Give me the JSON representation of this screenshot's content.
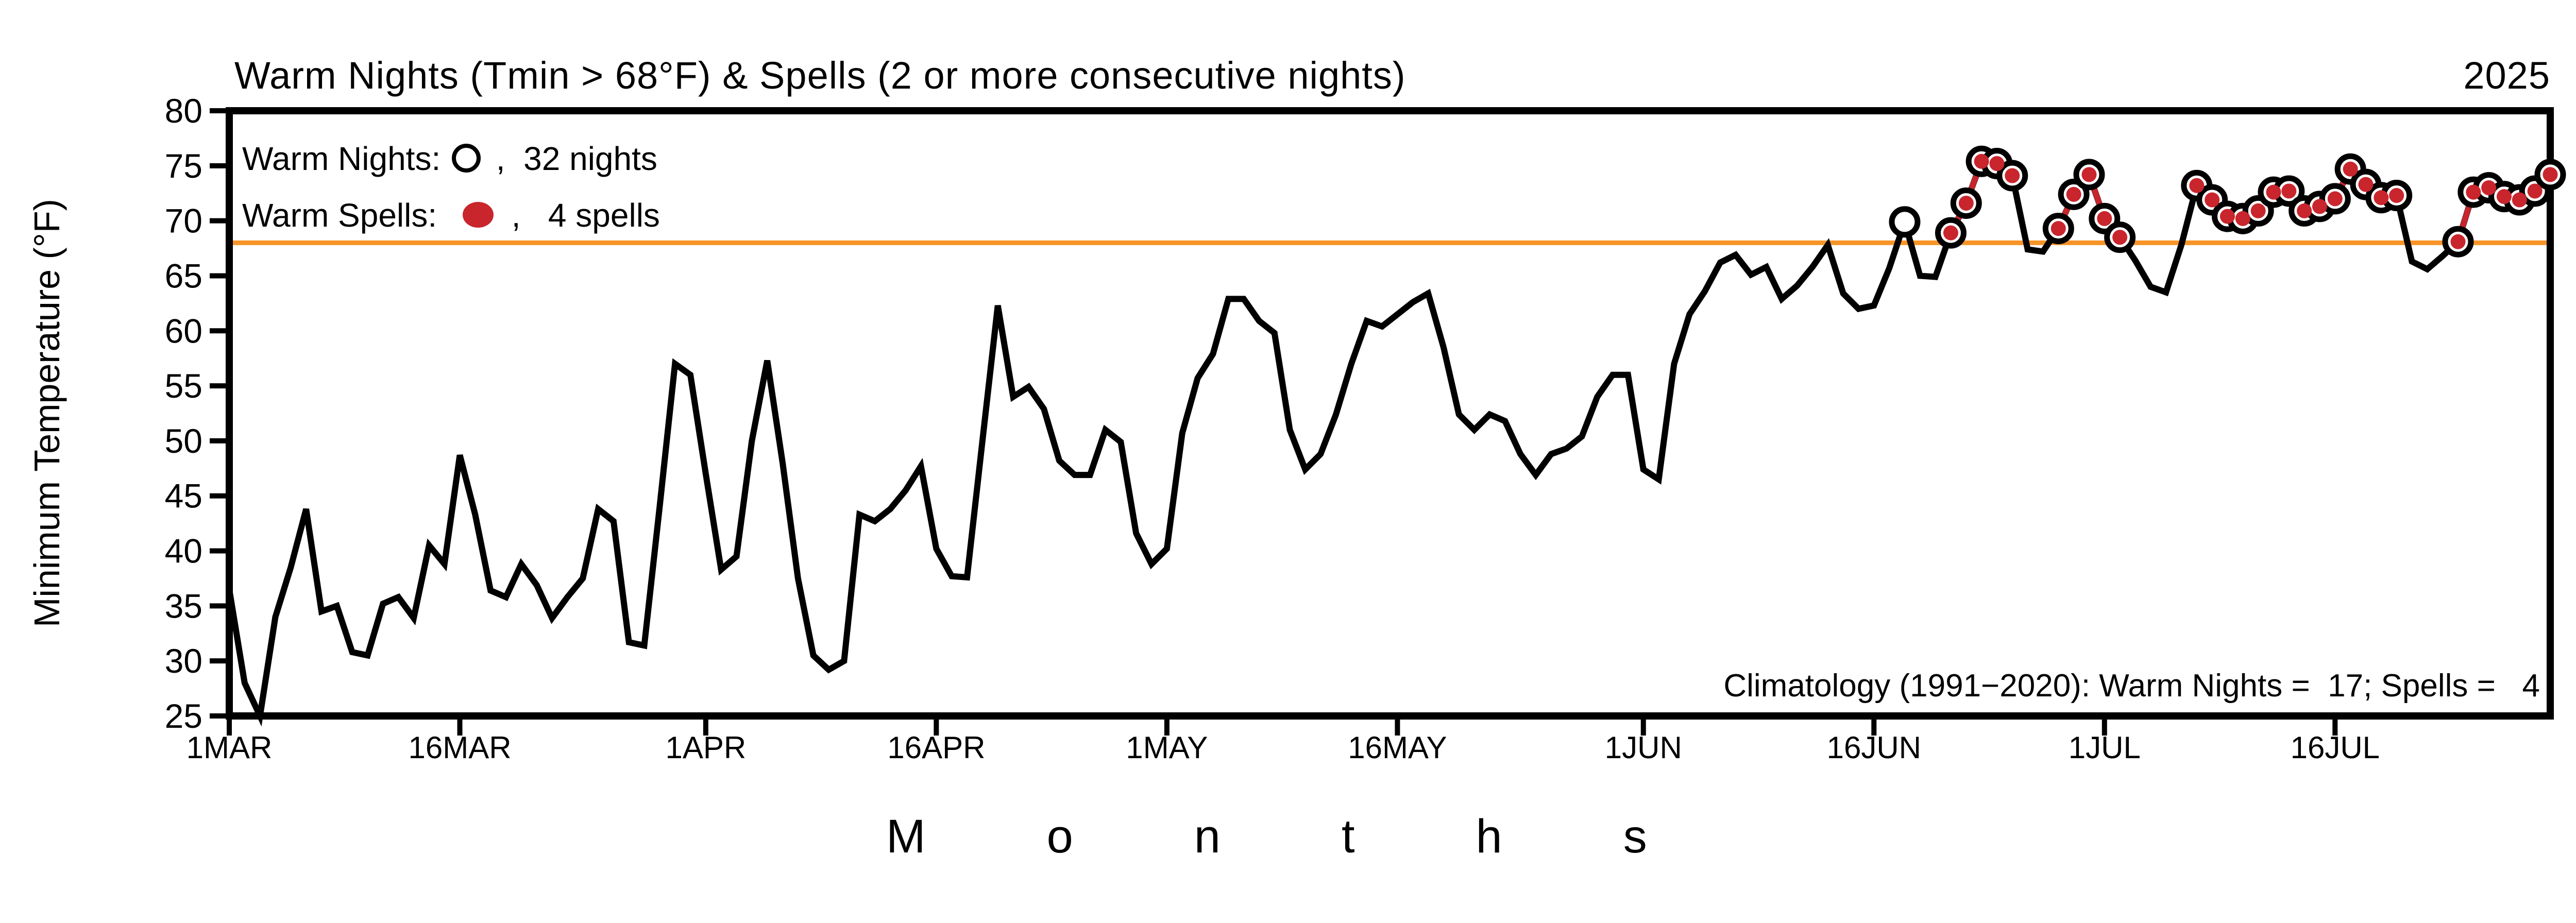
{
  "title": "Warm Nights (Tmin > 68°F) & Spells (2 or more consecutive nights)",
  "year": "2025",
  "months_label": "Months",
  "legend": {
    "warm_nights_label": "Warm Nights:",
    "warm_nights_suffix": " ,  32 nights",
    "warm_nights_count": 32,
    "warm_spells_label": "Warm Spells: ",
    "warm_spells_suffix": " ,   4 spells",
    "warm_spells_count": 4
  },
  "climatology_note": "Climatology (1991−2020): Warm Nights =  17; Spells =   4",
  "chart_data": {
    "type": "line",
    "title": "Warm Nights (Tmin > 68°F) & Spells (2 or more consecutive nights)",
    "year": "2025",
    "xlabel": "Months",
    "ylabel": "Minimum Temperature (°F)",
    "ylim": [
      25,
      80
    ],
    "yticks": [
      25,
      30,
      35,
      40,
      45,
      50,
      55,
      60,
      65,
      70,
      75,
      80
    ],
    "xticks": [
      {
        "label": "1MAR",
        "day": 0
      },
      {
        "label": "16MAR",
        "day": 15
      },
      {
        "label": "1APR",
        "day": 31
      },
      {
        "label": "16APR",
        "day": 46
      },
      {
        "label": "1MAY",
        "day": 61
      },
      {
        "label": "16MAY",
        "day": 76
      },
      {
        "label": "1JUN",
        "day": 92
      },
      {
        "label": "16JUN",
        "day": 107
      },
      {
        "label": "1JUL",
        "day": 122
      },
      {
        "label": "16JUL",
        "day": 137
      }
    ],
    "threshold_f": 68,
    "x_start": "1 MAR 2025",
    "x_end": "30 JUL 2025",
    "x_unit": "day index from 1 MAR",
    "values": [
      36.5,
      28,
      25,
      34,
      38.5,
      43.8,
      34.5,
      35,
      30.8,
      30.5,
      35.2,
      35.8,
      33.9,
      40.5,
      38.8,
      48.7,
      43.3,
      36.4,
      35.8,
      38.8,
      36.9,
      33.9,
      35.8,
      37.5,
      43.8,
      42.7,
      31.7,
      31.4,
      44,
      57,
      56,
      47,
      38.3,
      39.5,
      50,
      57.3,
      48,
      37.5,
      30.5,
      29.2,
      30,
      43.3,
      42.7,
      43.8,
      45.5,
      47.7,
      40.2,
      37.7,
      37.6,
      50,
      62.3,
      54,
      54.9,
      52.9,
      48.2,
      46.9,
      46.9,
      51,
      49.9,
      41.6,
      38.8,
      40.2,
      50.7,
      55.7,
      57.9,
      62.9,
      62.9,
      60.9,
      59.8,
      51,
      47.4,
      48.8,
      52.4,
      57,
      60.9,
      60.4,
      61.5,
      62.6,
      63.4,
      58.5,
      52.4,
      51,
      52.4,
      51.8,
      48.8,
      46.9,
      48.8,
      49.3,
      50.4,
      54,
      56,
      56,
      47.4,
      46.5,
      57,
      61.5,
      63.6,
      66.2,
      66.9,
      65.1,
      65.8,
      62.9,
      64.1,
      65.8,
      67.8,
      63.4,
      62,
      62.3,
      65.7,
      69.9,
      65,
      64.9,
      68.9,
      71.6,
      75.4,
      75.2,
      74.1,
      67.4,
      67.2,
      69.3,
      72.4,
      74.2,
      70.2,
      68.5,
      66.4,
      64,
      63.5,
      67.8,
      73.2,
      71.9,
      70.4,
      70.2,
      70.9,
      72.6,
      72.7,
      70.9,
      71.3,
      72,
      74.7,
      73.3,
      72.1,
      72.3,
      66.3,
      65.6,
      66.8,
      68.1,
      72.6,
      73,
      72.2,
      71.9,
      72.7,
      74.2
    ],
    "isolated_warm_night_days": [
      109
    ],
    "spells": [
      [
        112,
        116
      ],
      [
        119,
        123
      ],
      [
        128,
        141
      ],
      [
        145,
        151
      ]
    ],
    "totals": {
      "warm_nights": 32,
      "spells": 4
    },
    "climatology": {
      "period": "1991-2020",
      "warm_nights": 17,
      "spells": 4
    },
    "legend_position": "top-left inside plot",
    "grid": false,
    "colors": {
      "line": "#000000",
      "threshold": "#f79428",
      "spell": "#c9252d",
      "background": "#ffffff"
    }
  }
}
